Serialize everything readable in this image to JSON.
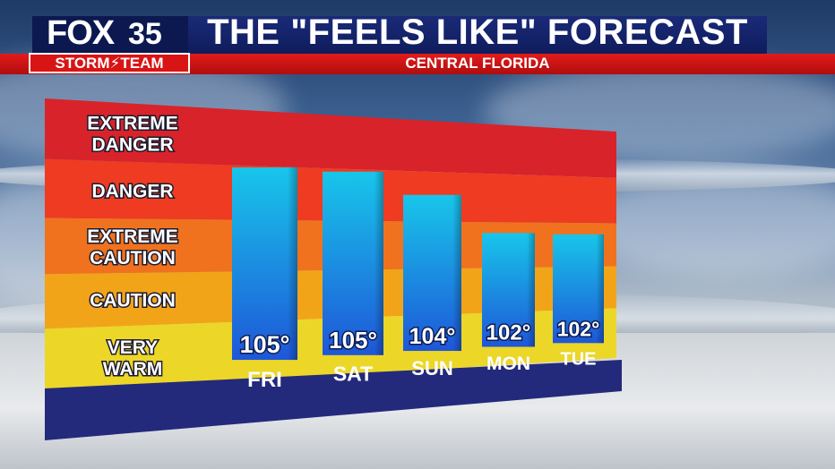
{
  "header": {
    "logo_fox": "FOX",
    "logo_number": "35",
    "logo_team": "STORM⚡TEAM",
    "title": "THE \"FEELS LIKE\" FORECAST",
    "subtitle": "CENTRAL FLORIDA"
  },
  "colors": {
    "extreme_danger": "#d8232a",
    "danger": "#ee3b22",
    "extreme_caution": "#f0721e",
    "caution": "#f2a418",
    "very_warm": "#ecd628",
    "bar_top": "#18c6ea",
    "bar_bottom": "#1e57d8",
    "base": "#232a7c"
  },
  "chart_data": {
    "type": "bar",
    "title": "THE \"FEELS LIKE\" FORECAST",
    "subtitle": "CENTRAL FLORIDA",
    "categories": [
      "FRI",
      "SAT",
      "SUN",
      "MON",
      "TUE"
    ],
    "values": [
      105,
      105,
      104,
      102,
      102
    ],
    "value_labels": [
      "105°",
      "105°",
      "104°",
      "102°",
      "102°"
    ],
    "bands": [
      {
        "label": [
          "EXTREME",
          "DANGER"
        ]
      },
      {
        "label": [
          "DANGER"
        ]
      },
      {
        "label": [
          "EXTREME",
          "CAUTION"
        ]
      },
      {
        "label": [
          "CAUTION"
        ]
      },
      {
        "label": [
          "VERY",
          "WARM"
        ]
      }
    ],
    "grid": false,
    "legend": "none"
  }
}
